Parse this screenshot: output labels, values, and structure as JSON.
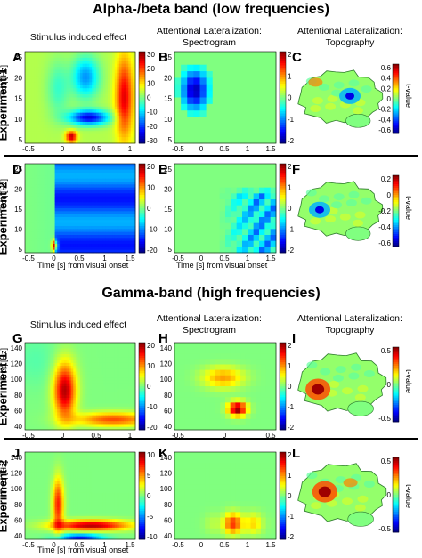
{
  "section_titles": {
    "low": "Alpha-/beta band (low frequencies)",
    "high": "Gamma-band (high frequencies)"
  },
  "column_titles": {
    "induced": "Stimulus induced effect",
    "spectrogram_line1": "Attentional Lateralization:",
    "spectrogram_line2": "Spectrogram",
    "topography_line1": "Attentional Lateralization:",
    "topography_line2": "Topography"
  },
  "experiment_labels": {
    "exp1": "Experiment 1",
    "exp2": "Experiment 2"
  },
  "axis_text": {
    "freq": "Freq [Hz]",
    "time": "Time [s] from visual onset",
    "tvalue": "t-value"
  },
  "panel_letters": [
    "A",
    "B",
    "C",
    "D",
    "E",
    "F",
    "G",
    "H",
    "I",
    "J",
    "K",
    "L"
  ],
  "colors": {
    "background": "#ffffff",
    "text": "#000000",
    "colormap": "jet"
  },
  "chart_data": [
    {
      "id": "A",
      "type": "heatmap",
      "xticks": [
        "-0.5",
        "0",
        "0.5",
        "1"
      ],
      "yticks": [
        "25",
        "20",
        "15",
        "10",
        "5"
      ],
      "cbar_ticks": [
        "30",
        "20",
        "10",
        "0",
        "-10",
        "-20",
        "-30"
      ]
    },
    {
      "id": "B",
      "type": "heatmap",
      "xticks": [
        "-0.5",
        "0",
        "0.5",
        "1",
        "1.5"
      ],
      "yticks": [
        "25",
        "20",
        "15",
        "10",
        "5"
      ],
      "cbar_ticks": [
        "2",
        "1",
        "0",
        "-1",
        "-2"
      ]
    },
    {
      "id": "C",
      "type": "heatmap",
      "cbar_ticks": [
        "0.6",
        "0.4",
        "0.2",
        "0",
        "-0.2",
        "-0.4",
        "-0.6"
      ]
    },
    {
      "id": "D",
      "type": "heatmap",
      "xticks": [
        "-0.5",
        "0",
        "0.5",
        "1",
        "1.5"
      ],
      "yticks": [
        "25",
        "20",
        "15",
        "10",
        "5"
      ],
      "cbar_ticks": [
        "20",
        "10",
        "0",
        "-10",
        "-20"
      ]
    },
    {
      "id": "E",
      "type": "heatmap",
      "xticks": [
        "-0.5",
        "0",
        "0.5",
        "1",
        "1.5"
      ],
      "yticks": [
        "25",
        "20",
        "15",
        "10",
        "5"
      ],
      "cbar_ticks": [
        "2",
        "1",
        "0",
        "-1",
        "-2"
      ]
    },
    {
      "id": "F",
      "type": "heatmap",
      "cbar_ticks": [
        "0.2",
        "0",
        "-0.2",
        "-0.4",
        "-0.6"
      ]
    },
    {
      "id": "G",
      "type": "heatmap",
      "xticks": [
        "-0.5",
        "0",
        "0.5",
        "1"
      ],
      "yticks": [
        "140",
        "120",
        "100",
        "80",
        "60",
        "40"
      ],
      "cbar_ticks": [
        "20",
        "10",
        "0",
        "-10",
        "-20"
      ]
    },
    {
      "id": "H",
      "type": "heatmap",
      "xticks": [
        "-0.5",
        "0",
        "0.5"
      ],
      "yticks": [
        "140",
        "120",
        "100",
        "80",
        "60",
        "40"
      ],
      "cbar_ticks": [
        "2",
        "1",
        "0",
        "-1",
        "-2"
      ]
    },
    {
      "id": "I",
      "type": "heatmap",
      "cbar_ticks": [
        "0.5",
        "0",
        "-0.5"
      ]
    },
    {
      "id": "J",
      "type": "heatmap",
      "xticks": [
        "-0.5",
        "0",
        "0.5",
        "1",
        "1.5"
      ],
      "yticks": [
        "140",
        "120",
        "100",
        "80",
        "60",
        "40"
      ],
      "cbar_ticks": [
        "10",
        "5",
        "0",
        "-5",
        "-10"
      ]
    },
    {
      "id": "K",
      "type": "heatmap",
      "xticks": [
        "-0.5",
        "0",
        "0.5",
        "1",
        "1.5"
      ],
      "yticks": [
        "140",
        "120",
        "100",
        "80",
        "60",
        "40"
      ],
      "cbar_ticks": [
        "2",
        "1",
        "0",
        "-1",
        "-2"
      ]
    },
    {
      "id": "L",
      "type": "heatmap",
      "cbar_ticks": [
        "0.5",
        "0",
        "-0.5"
      ]
    }
  ]
}
